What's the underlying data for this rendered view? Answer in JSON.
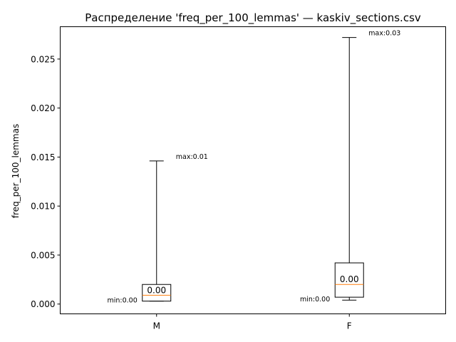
{
  "chart_data": {
    "type": "box",
    "title": "Распределение 'freq_per_100_lemmas' — kaskiv_sections.csv",
    "xlabel": "",
    "ylabel": "freq_per_100_lemmas",
    "ylim": [
      -0.001,
      0.0283
    ],
    "yticks": [
      0.0,
      0.005,
      0.01,
      0.015,
      0.02,
      0.025
    ],
    "ytick_labels": [
      "0.000",
      "0.005",
      "0.010",
      "0.015",
      "0.020",
      "0.025"
    ],
    "grid": false,
    "categories": [
      "M",
      "F"
    ],
    "series": [
      {
        "category": "M",
        "min": 0.0003,
        "q1": 0.0003,
        "median": 0.0009,
        "q3": 0.002,
        "max": 0.0146,
        "max_label": "max:0.01",
        "min_label": "min:0.00",
        "median_label": "0.00"
      },
      {
        "category": "F",
        "min": 0.0004,
        "q1": 0.0007,
        "median": 0.002,
        "q3": 0.0042,
        "max": 0.0272,
        "max_label": "max:0.03",
        "min_label": "min:0.00",
        "median_label": "0.00"
      }
    ],
    "colors": {
      "median": "#ff7f0e",
      "box": "#000000"
    }
  }
}
